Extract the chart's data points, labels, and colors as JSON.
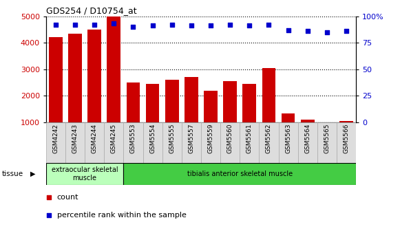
{
  "title": "GDS254 / D10754_at",
  "categories": [
    "GSM4242",
    "GSM4243",
    "GSM4244",
    "GSM4245",
    "GSM5553",
    "GSM5554",
    "GSM5555",
    "GSM5557",
    "GSM5559",
    "GSM5560",
    "GSM5561",
    "GSM5562",
    "GSM5563",
    "GSM5564",
    "GSM5565",
    "GSM5566"
  ],
  "counts": [
    4200,
    4350,
    4500,
    5000,
    2500,
    2450,
    2600,
    2700,
    2200,
    2550,
    2450,
    3050,
    1350,
    1100,
    1000,
    1050
  ],
  "percentiles": [
    92,
    92,
    92,
    93,
    90,
    91,
    92,
    91,
    91,
    92,
    91,
    92,
    87,
    86,
    85,
    86
  ],
  "bar_color": "#cc0000",
  "dot_color": "#0000cc",
  "left_ylim": [
    1000,
    5000
  ],
  "left_yticks": [
    1000,
    2000,
    3000,
    4000,
    5000
  ],
  "right_ylim": [
    0,
    100
  ],
  "right_yticks": [
    0,
    25,
    50,
    75,
    100
  ],
  "right_yticklabels": [
    "0",
    "25",
    "50",
    "75",
    "100%"
  ],
  "tissue_groups": [
    {
      "label": "extraocular skeletal\nmuscle",
      "start": 0,
      "end": 4,
      "color": "#bbffbb"
    },
    {
      "label": "tibialis anterior skeletal muscle",
      "start": 4,
      "end": 16,
      "color": "#44cc44"
    }
  ],
  "tissue_label": "tissue",
  "legend_items": [
    {
      "color": "#cc0000",
      "label": "count",
      "marker": "s"
    },
    {
      "color": "#0000cc",
      "label": "percentile rank within the sample",
      "marker": "s"
    }
  ],
  "background_color": "#ffffff",
  "plot_bg_color": "#ffffff",
  "grid_color": "#000000",
  "left_label_color": "#cc0000",
  "right_label_color": "#0000cc",
  "xlabel_rotation": 90,
  "bar_width": 0.7,
  "xtick_bg_color": "#dddddd"
}
